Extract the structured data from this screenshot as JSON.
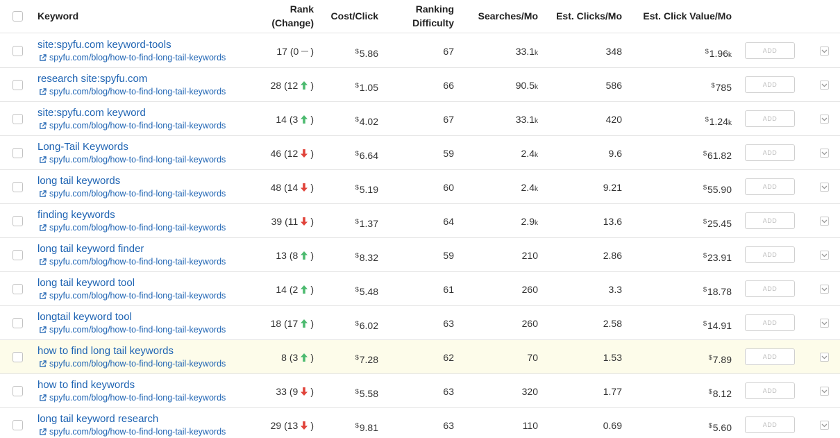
{
  "header": {
    "keyword": "Keyword",
    "rank_line1": "Rank",
    "rank_line2": "(Change)",
    "cost_click": "Cost/Click",
    "difficulty_line1": "Ranking",
    "difficulty_line2": "Difficulty",
    "searches": "Searches/Mo",
    "clicks": "Est. Clicks/Mo",
    "click_value": "Est. Click Value/Mo"
  },
  "add_label": "ADD",
  "icons": {
    "checkbox": "checkbox-icon",
    "external_link": "external-link-icon",
    "arrow_up": "arrow-up-icon",
    "arrow_down": "arrow-down-icon",
    "caret": "chevron-down-icon"
  },
  "colors": {
    "link": "#1f64b3",
    "up": "#4cba6f",
    "down": "#e0433a",
    "highlight": "#fdfcea"
  },
  "rows": [
    {
      "keyword": "site:spyfu.com keyword-tools",
      "url": "spyfu.com/blog/how-to-find-long-tail-keywords",
      "rank": "17",
      "change": "0",
      "dir": "none",
      "cpc": "5.86",
      "difficulty": "67",
      "searches": "33.1",
      "searches_unit": "k",
      "clicks": "348",
      "value": "1.96",
      "value_unit": "k"
    },
    {
      "keyword": "research site:spyfu.com",
      "url": "spyfu.com/blog/how-to-find-long-tail-keywords",
      "rank": "28",
      "change": "12",
      "dir": "up",
      "cpc": "1.05",
      "difficulty": "66",
      "searches": "90.5",
      "searches_unit": "k",
      "clicks": "586",
      "value": "785",
      "value_unit": ""
    },
    {
      "keyword": "site:spyfu.com keyword",
      "url": "spyfu.com/blog/how-to-find-long-tail-keywords",
      "rank": "14",
      "change": "3",
      "dir": "up",
      "cpc": "4.02",
      "difficulty": "67",
      "searches": "33.1",
      "searches_unit": "k",
      "clicks": "420",
      "value": "1.24",
      "value_unit": "k"
    },
    {
      "keyword": "Long-Tail Keywords",
      "url": "spyfu.com/blog/how-to-find-long-tail-keywords",
      "rank": "46",
      "change": "12",
      "dir": "down",
      "cpc": "6.64",
      "difficulty": "59",
      "searches": "2.4",
      "searches_unit": "k",
      "clicks": "9.6",
      "value": "61.82",
      "value_unit": ""
    },
    {
      "keyword": "long tail keywords",
      "url": "spyfu.com/blog/how-to-find-long-tail-keywords",
      "rank": "48",
      "change": "14",
      "dir": "down",
      "cpc": "5.19",
      "difficulty": "60",
      "searches": "2.4",
      "searches_unit": "k",
      "clicks": "9.21",
      "value": "55.90",
      "value_unit": ""
    },
    {
      "keyword": "finding keywords",
      "url": "spyfu.com/blog/how-to-find-long-tail-keywords",
      "rank": "39",
      "change": "11",
      "dir": "down",
      "cpc": "1.37",
      "difficulty": "64",
      "searches": "2.9",
      "searches_unit": "k",
      "clicks": "13.6",
      "value": "25.45",
      "value_unit": ""
    },
    {
      "keyword": "long tail keyword finder",
      "url": "spyfu.com/blog/how-to-find-long-tail-keywords",
      "rank": "13",
      "change": "8",
      "dir": "up",
      "cpc": "8.32",
      "difficulty": "59",
      "searches": "210",
      "searches_unit": "",
      "clicks": "2.86",
      "value": "23.91",
      "value_unit": ""
    },
    {
      "keyword": "long tail keyword tool",
      "url": "spyfu.com/blog/how-to-find-long-tail-keywords",
      "rank": "14",
      "change": "2",
      "dir": "up",
      "cpc": "5.48",
      "difficulty": "61",
      "searches": "260",
      "searches_unit": "",
      "clicks": "3.3",
      "value": "18.78",
      "value_unit": ""
    },
    {
      "keyword": "longtail keyword tool",
      "url": "spyfu.com/blog/how-to-find-long-tail-keywords",
      "rank": "18",
      "change": "17",
      "dir": "up",
      "cpc": "6.02",
      "difficulty": "63",
      "searches": "260",
      "searches_unit": "",
      "clicks": "2.58",
      "value": "14.91",
      "value_unit": ""
    },
    {
      "keyword": "how to find long tail keywords",
      "url": "spyfu.com/blog/how-to-find-long-tail-keywords",
      "rank": "8",
      "change": "3",
      "dir": "up",
      "cpc": "7.28",
      "difficulty": "62",
      "searches": "70",
      "searches_unit": "",
      "clicks": "1.53",
      "value": "7.89",
      "value_unit": "",
      "highlight": true
    },
    {
      "keyword": "how to find keywords",
      "url": "spyfu.com/blog/how-to-find-long-tail-keywords",
      "rank": "33",
      "change": "9",
      "dir": "down",
      "cpc": "5.58",
      "difficulty": "63",
      "searches": "320",
      "searches_unit": "",
      "clicks": "1.77",
      "value": "8.12",
      "value_unit": ""
    },
    {
      "keyword": "long tail keyword research",
      "url": "spyfu.com/blog/how-to-find-long-tail-keywords",
      "rank": "29",
      "change": "13",
      "dir": "down",
      "cpc": "9.81",
      "difficulty": "63",
      "searches": "110",
      "searches_unit": "",
      "clicks": "0.69",
      "value": "5.60",
      "value_unit": ""
    }
  ]
}
